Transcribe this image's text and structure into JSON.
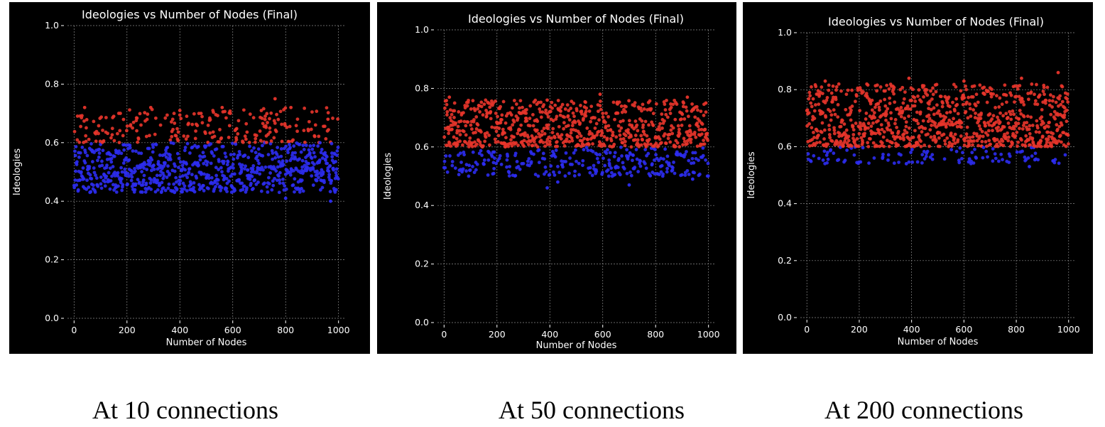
{
  "colors": {
    "background": "#000000",
    "above_threshold": "#e8352b",
    "below_threshold": "#2c2cf0",
    "threshold": 0.6
  },
  "charts": [
    {
      "caption": "At 10 connections"
    },
    {
      "caption": "At 50 connections"
    },
    {
      "caption": "At 200 connections"
    }
  ],
  "chart_data": [
    {
      "type": "scatter",
      "title": "Ideologies vs Number of Nodes (Final)",
      "xlabel": "Number of Nodes",
      "ylabel": "Ideologies",
      "xlim": [
        -25,
        1025
      ],
      "ylim": [
        0.0,
        1.0
      ],
      "xticks": [
        0,
        200,
        400,
        600,
        800,
        1000
      ],
      "yticks": [
        0.0,
        0.2,
        0.4,
        0.6,
        0.8,
        1.0
      ],
      "xtick_labels": [
        "0",
        "200",
        "400",
        "600",
        "800",
        "1000"
      ],
      "ytick_labels": [
        "0.0",
        "0.2",
        "0.4",
        "0.6",
        "0.8",
        "1.0"
      ],
      "grid": true,
      "n_points": 1000,
      "highlight_points": [
        {
          "x": 40,
          "y": 0.72
        },
        {
          "x": 150,
          "y": 0.69
        },
        {
          "x": 290,
          "y": 0.72
        },
        {
          "x": 400,
          "y": 0.71
        },
        {
          "x": 480,
          "y": 0.7
        },
        {
          "x": 560,
          "y": 0.72
        },
        {
          "x": 760,
          "y": 0.75
        },
        {
          "x": 820,
          "y": 0.72
        },
        {
          "x": 960,
          "y": 0.68
        },
        {
          "x": 800,
          "y": 0.41
        },
        {
          "x": 970,
          "y": 0.4
        },
        {
          "x": 380,
          "y": 0.43
        }
      ],
      "distribution": {
        "above": {
          "fraction": 0.22,
          "min": 0.6,
          "max": 0.72
        },
        "below": {
          "fraction": 0.78,
          "min": 0.43,
          "max": 0.6
        }
      }
    },
    {
      "type": "scatter",
      "title": "Ideologies vs Number of Nodes (Final)",
      "xlabel": "Number of Nodes",
      "ylabel": "Ideologies",
      "xlim": [
        -25,
        1025
      ],
      "ylim": [
        0.0,
        1.0
      ],
      "xticks": [
        0,
        200,
        400,
        600,
        800,
        1000
      ],
      "yticks": [
        0.0,
        0.2,
        0.4,
        0.6,
        0.8,
        1.0
      ],
      "xtick_labels": [
        "0",
        "200",
        "400",
        "600",
        "800",
        "1000"
      ],
      "ytick_labels": [
        "0.0",
        "0.2",
        "0.4",
        "0.6",
        "0.8",
        "1.0"
      ],
      "grid": true,
      "n_points": 1000,
      "highlight_points": [
        {
          "x": 20,
          "y": 0.77
        },
        {
          "x": 390,
          "y": 0.76
        },
        {
          "x": 590,
          "y": 0.78
        },
        {
          "x": 920,
          "y": 0.77
        },
        {
          "x": 990,
          "y": 0.75
        },
        {
          "x": 390,
          "y": 0.46
        },
        {
          "x": 430,
          "y": 0.48
        },
        {
          "x": 700,
          "y": 0.47
        },
        {
          "x": 940,
          "y": 0.49
        }
      ],
      "distribution": {
        "above": {
          "fraction": 0.7,
          "min": 0.6,
          "max": 0.76
        },
        "below": {
          "fraction": 0.3,
          "min": 0.5,
          "max": 0.6
        }
      }
    },
    {
      "type": "scatter",
      "title": "Ideologies vs Number of Nodes (Final)",
      "xlabel": "Number of Nodes",
      "ylabel": "Ideologies",
      "xlim": [
        -25,
        1025
      ],
      "ylim": [
        0.0,
        1.0
      ],
      "xticks": [
        0,
        200,
        400,
        600,
        800,
        1000
      ],
      "yticks": [
        0.0,
        0.2,
        0.4,
        0.6,
        0.8,
        1.0
      ],
      "xtick_labels": [
        "0",
        "200",
        "400",
        "600",
        "800",
        "1000"
      ],
      "ytick_labels": [
        "0.0",
        "0.2",
        "0.4",
        "0.6",
        "0.8",
        "1.0"
      ],
      "grid": true,
      "n_points": 1000,
      "highlight_points": [
        {
          "x": 390,
          "y": 0.84
        },
        {
          "x": 820,
          "y": 0.84
        },
        {
          "x": 960,
          "y": 0.86
        },
        {
          "x": 70,
          "y": 0.83
        },
        {
          "x": 600,
          "y": 0.83
        },
        {
          "x": 850,
          "y": 0.53
        },
        {
          "x": 940,
          "y": 0.55
        },
        {
          "x": 380,
          "y": 0.54
        }
      ],
      "distribution": {
        "above": {
          "fraction": 0.9,
          "min": 0.6,
          "max": 0.82
        },
        "below": {
          "fraction": 0.1,
          "min": 0.54,
          "max": 0.6
        }
      }
    }
  ]
}
